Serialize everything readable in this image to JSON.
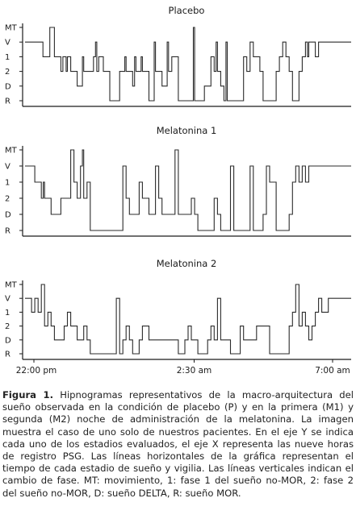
{
  "chart_data": [
    {
      "type": "line",
      "title": "Placebo",
      "y_categories": [
        "MT",
        "V",
        "1",
        "2",
        "D",
        "R"
      ],
      "x": [
        0,
        1.5,
        3,
        5.5,
        7,
        7.6,
        9,
        10,
        11,
        11.6,
        12,
        12.6,
        13,
        13.5,
        14,
        15,
        16,
        17,
        17.6,
        18,
        19,
        20,
        21,
        21.6,
        22,
        22.6,
        23,
        23.6,
        24,
        25,
        26,
        27,
        28,
        29,
        30,
        30.6,
        31,
        32,
        33,
        33.6,
        34,
        35,
        35.6,
        36,
        37,
        38,
        39,
        39.6,
        40,
        41,
        42,
        43,
        43.6,
        44,
        45,
        46,
        47,
        48,
        49,
        50,
        51,
        51.6,
        52,
        53,
        54,
        55,
        56,
        57,
        58,
        58.6,
        59,
        60,
        61,
        61.6,
        62,
        63,
        64,
        65,
        66,
        67,
        68,
        69,
        70,
        71,
        72,
        73,
        74,
        75,
        76,
        77,
        78,
        79,
        80,
        81,
        82,
        83,
        84,
        85,
        86,
        86.6,
        87,
        88,
        89,
        90,
        91,
        92,
        93,
        94,
        95,
        96,
        97,
        98,
        99,
        100
      ],
      "y": [
        "V",
        "V",
        "V",
        "1",
        "1",
        "MT",
        "1",
        "1",
        "2",
        "1",
        "1",
        "2",
        "1",
        "1",
        "2",
        "2",
        "D",
        "D",
        "1",
        "2",
        "2",
        "2",
        "1",
        "V",
        "2",
        "1",
        "1",
        "1",
        "2",
        "2",
        "R",
        "R",
        "R",
        "2",
        "2",
        "1",
        "2",
        "2",
        "D",
        "1",
        "2",
        "2",
        "1",
        "2",
        "2",
        "R",
        "R",
        "V",
        "2",
        "2",
        "D",
        "D",
        "V",
        "2",
        "1",
        "1",
        "R",
        "R",
        "R",
        "R",
        "R",
        "MT",
        "R",
        "R",
        "R",
        "D",
        "D",
        "1",
        "2",
        "V",
        "2",
        "D",
        "R",
        "V",
        "R",
        "R",
        "R",
        "R",
        "R",
        "1",
        "2",
        "V",
        "1",
        "1",
        "2",
        "R",
        "R",
        "R",
        "R",
        "2",
        "1",
        "V",
        "1",
        "2",
        "R",
        "R",
        "2",
        "1",
        "V",
        "1",
        "V",
        "V",
        "1",
        "V",
        "V",
        "V",
        "V",
        "V",
        "V",
        "V",
        "V",
        "V",
        "V",
        "V"
      ],
      "grid": false
    },
    {
      "type": "line",
      "title": "Melatonina 1",
      "y_categories": [
        "MT",
        "V",
        "1",
        "2",
        "D",
        "R"
      ],
      "x": [
        0,
        2,
        3,
        4,
        5,
        5.6,
        6,
        7,
        8,
        9,
        10,
        11,
        12,
        13,
        14,
        15,
        16,
        17,
        17.6,
        18,
        19,
        20,
        21,
        22,
        23,
        24,
        25,
        26,
        27,
        28,
        29,
        30,
        31,
        32,
        33,
        34,
        35,
        36,
        37,
        38,
        39,
        40,
        41,
        42,
        43,
        44,
        45,
        46,
        47,
        48,
        49,
        50,
        51,
        52,
        53,
        54,
        55,
        56,
        57,
        58,
        59,
        60,
        61,
        62,
        63,
        64,
        65,
        66,
        67,
        68,
        69,
        70,
        71,
        72,
        73,
        74,
        75,
        76,
        77,
        78,
        79,
        80,
        81,
        82,
        83,
        84,
        85,
        86,
        87,
        88,
        89,
        90,
        91,
        92,
        93,
        94,
        95,
        96,
        97,
        98,
        99,
        100
      ],
      "y": [
        "V",
        "V",
        "1",
        "1",
        "2",
        "1",
        "2",
        "2",
        "D",
        "D",
        "D",
        "2",
        "2",
        "2",
        "MT",
        "1",
        "2",
        "V",
        "MT",
        "2",
        "1",
        "R",
        "R",
        "R",
        "R",
        "R",
        "R",
        "R",
        "R",
        "R",
        "R",
        "V",
        "2",
        "D",
        "D",
        "D",
        "1",
        "2",
        "2",
        "D",
        "D",
        "V",
        "2",
        "D",
        "D",
        "D",
        "D",
        "MT",
        "D",
        "D",
        "D",
        "D",
        "2",
        "D",
        "R",
        "R",
        "R",
        "R",
        "R",
        "2",
        "D",
        "R",
        "R",
        "R",
        "V",
        "R",
        "R",
        "R",
        "R",
        "R",
        "V",
        "R",
        "R",
        "R",
        "D",
        "V",
        "1",
        "1",
        "R",
        "R",
        "R",
        "R",
        "D",
        "1",
        "V",
        "1",
        "V",
        "1",
        "V",
        "V",
        "V",
        "V",
        "V",
        "V",
        "V",
        "V",
        "V",
        "V",
        "V",
        "V",
        "V",
        "V"
      ],
      "grid": false
    },
    {
      "type": "line",
      "title": "Melatonina 2",
      "y_categories": [
        "MT",
        "V",
        "1",
        "2",
        "D",
        "R"
      ],
      "x": [
        0,
        2,
        3,
        4,
        5,
        6,
        7,
        8,
        9,
        10,
        11,
        12,
        13,
        14,
        15,
        16,
        17,
        18,
        19,
        20,
        21,
        22,
        23,
        24,
        25,
        26,
        27,
        28,
        29,
        30,
        31,
        32,
        33,
        34,
        35,
        36,
        37,
        38,
        39,
        40,
        41,
        42,
        43,
        44,
        45,
        46,
        47,
        48,
        49,
        50,
        51,
        52,
        53,
        54,
        55,
        56,
        57,
        58,
        59,
        60,
        61,
        62,
        63,
        64,
        65,
        66,
        67,
        68,
        69,
        70,
        71,
        72,
        73,
        74,
        75,
        76,
        77,
        78,
        79,
        80,
        81,
        82,
        83,
        84,
        85,
        86,
        87,
        88,
        89,
        90,
        91,
        92,
        93,
        94,
        95,
        96,
        97,
        98,
        99,
        100
      ],
      "y": [
        "V",
        "1",
        "V",
        "1",
        "MT",
        "2",
        "1",
        "2",
        "D",
        "D",
        "D",
        "2",
        "1",
        "2",
        "2",
        "D",
        "D",
        "2",
        "D",
        "R",
        "R",
        "R",
        "R",
        "R",
        "R",
        "R",
        "R",
        "V",
        "R",
        "D",
        "2",
        "D",
        "R",
        "R",
        "D",
        "2",
        "2",
        "D",
        "D",
        "D",
        "D",
        "D",
        "D",
        "D",
        "D",
        "D",
        "R",
        "R",
        "D",
        "2",
        "D",
        "D",
        "R",
        "R",
        "R",
        "D",
        "2",
        "D",
        "V",
        "D",
        "D",
        "D",
        "R",
        "R",
        "R",
        "2",
        "D",
        "D",
        "D",
        "D",
        "2",
        "2",
        "2",
        "2",
        "R",
        "R",
        "R",
        "R",
        "R",
        "R",
        "2",
        "1",
        "MT",
        "2",
        "1",
        "2",
        "D",
        "2",
        "1",
        "V",
        "1",
        "1",
        "V",
        "V",
        "V",
        "V",
        "V",
        "V",
        "V",
        "V"
      ],
      "grid": false,
      "x_ticks": [
        "22:00 pm",
        "2:30 am",
        "7:00 am"
      ]
    }
  ],
  "caption": {
    "label": "Figura 1.",
    "text": " Hipnogramas representativos de la macro-arquitectura del sueño observada en la condición de placebo (P) y en la primera (M1) y segunda (M2) noche de administración de la melatonina. La imagen muestra el caso de uno solo de nuestros pacientes. En el eje Y se indica cada uno de los estadios evaluados, el eje X representa las nueve horas de registro PSG. Las líneas horizontales de la gráfica representan el tiempo de cada estadio de sueño y vigilia. Las líneas verticales indican el cambio de fase. MT: movimiento, 1: fase 1 del sueño no-MOR, 2: fase 2 del sueño no-MOR, D: sueño DELTA, R: sueño MOR."
  },
  "colors": {
    "line": "#2b2b2b",
    "axis": "#1a1a1a"
  }
}
